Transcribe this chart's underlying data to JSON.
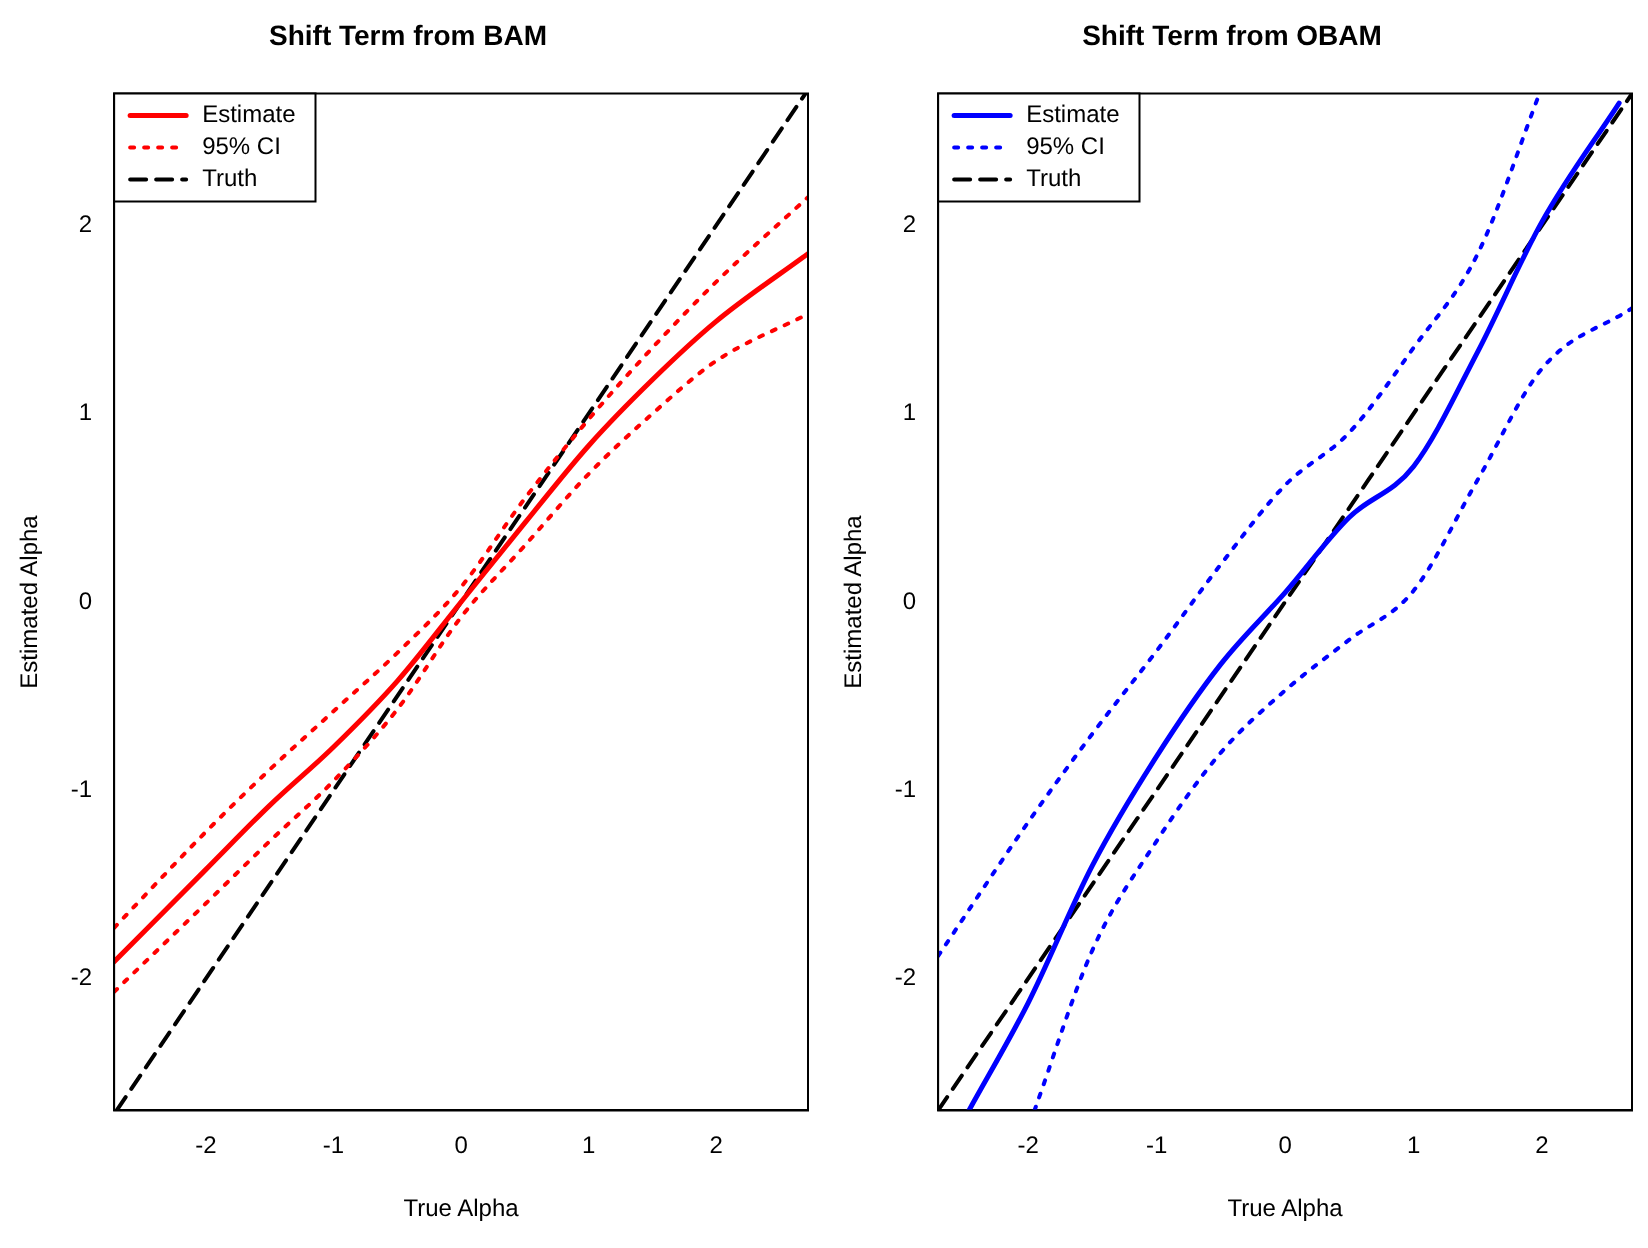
{
  "chart_data": [
    {
      "type": "line",
      "title": "Shift Term from BAM",
      "xlabel": "True Alpha",
      "ylabel": "Estimated Alpha",
      "xlim": [
        -2.72,
        2.72
      ],
      "ylim": [
        -2.7,
        2.7
      ],
      "xticks": [
        -2,
        -1,
        0,
        1,
        2
      ],
      "yticks": [
        -2,
        -1,
        0,
        1,
        2
      ],
      "grid": false,
      "legend": "top left",
      "marker": "none",
      "series": [
        {
          "name": "Estimate",
          "color": "#ff0000",
          "line_style": "solid",
          "x": [
            -2.72,
            -2,
            -1.5,
            -1,
            -0.5,
            0,
            0.5,
            1,
            1.5,
            2,
            2.72
          ],
          "values": [
            -1.91,
            -1.42,
            -1.08,
            -0.77,
            -0.42,
            0.0,
            0.42,
            0.83,
            1.18,
            1.49,
            1.85
          ]
        },
        {
          "name": "95% CI",
          "color": "#ff0000",
          "line_style": "dotted",
          "x": [
            -2.72,
            -2,
            -1.5,
            -1,
            -0.5,
            0,
            0.5,
            1,
            1.5,
            2,
            2.72
          ],
          "values": [
            -1.73,
            -1.22,
            -0.89,
            -0.58,
            -0.27,
            0.08,
            0.55,
            0.97,
            1.35,
            1.7,
            2.15
          ]
        },
        {
          "color": "#ff0000",
          "line_style": "dotted",
          "x": [
            -2.72,
            -2,
            -1.5,
            -1,
            -0.5,
            0,
            0.5,
            1,
            1.5,
            2,
            2.72
          ],
          "values": [
            -2.07,
            -1.6,
            -1.27,
            -0.95,
            -0.57,
            -0.08,
            0.3,
            0.68,
            1.0,
            1.28,
            1.53
          ]
        },
        {
          "name": "Truth",
          "color": "#000000",
          "line_style": "dashed",
          "x": [
            -2.7,
            2.7
          ],
          "values": [
            -2.7,
            2.7
          ]
        }
      ]
    },
    {
      "type": "line",
      "title": "Shift Term from OBAM",
      "xlabel": "True Alpha",
      "ylabel": "Estimated Alpha",
      "xlim": [
        -2.7,
        2.7
      ],
      "ylim": [
        -2.7,
        2.7
      ],
      "xticks": [
        -2,
        -1,
        0,
        1,
        2
      ],
      "yticks": [
        -2,
        -1,
        0,
        1,
        2
      ],
      "grid": false,
      "legend": "top left",
      "marker": "none",
      "series": [
        {
          "name": "Estimate",
          "color": "#0000ff",
          "line_style": "solid",
          "x": [
            -2.46,
            -2,
            -1.5,
            -1,
            -0.5,
            0,
            0.5,
            1,
            1.5,
            2,
            2.6
          ],
          "values": [
            -2.7,
            -2.13,
            -1.4,
            -0.82,
            -0.33,
            0.05,
            0.45,
            0.72,
            1.33,
            2.02,
            2.65
          ]
        },
        {
          "name": "95% CI",
          "color": "#0000ff",
          "line_style": "dotted",
          "x": [
            -2.7,
            -2,
            -1.5,
            -1,
            -0.5,
            0,
            0.5,
            1,
            1.5,
            1.98
          ],
          "values": [
            -1.88,
            -1.17,
            -0.7,
            -0.26,
            0.2,
            0.62,
            0.9,
            1.35,
            1.85,
            2.7
          ]
        },
        {
          "color": "#0000ff",
          "line_style": "dotted",
          "x": [
            -1.95,
            -1.5,
            -1,
            -0.5,
            0,
            0.5,
            1,
            1.5,
            2,
            2.7
          ],
          "values": [
            -2.7,
            -1.85,
            -1.27,
            -0.8,
            -0.47,
            -0.2,
            0.06,
            0.65,
            1.24,
            1.56
          ]
        },
        {
          "name": "Truth",
          "color": "#000000",
          "line_style": "dashed",
          "x": [
            -2.7,
            2.7
          ],
          "values": [
            -2.7,
            2.7
          ]
        }
      ]
    }
  ]
}
